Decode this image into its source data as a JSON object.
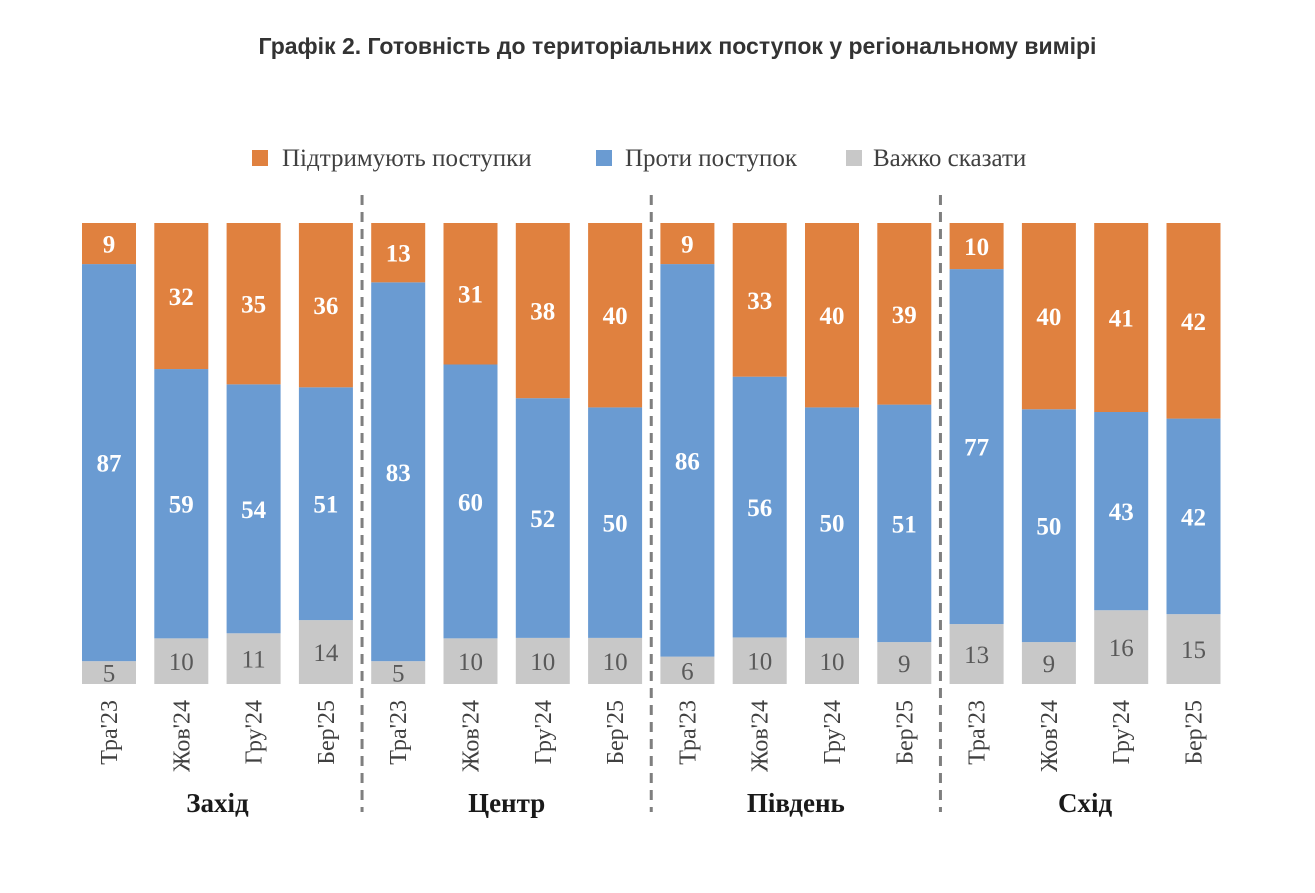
{
  "title": "Графік 2. Готовність до територіальних поступок у регіональному вимірі",
  "chart_data": {
    "type": "bar",
    "stacked": true,
    "percent_stacked": true,
    "title": "Графік 2. Готовність до територіальних поступок у регіональному вимірі",
    "legend": [
      {
        "name": "Підтримують поступки",
        "color": "#E0813F"
      },
      {
        "name": "Проти поступок",
        "color": "#6A9BD2"
      },
      {
        "name": "Важко сказати",
        "color": "#C8C8C8"
      }
    ],
    "legend_position": "top",
    "stack_order_bottom_to_top": [
      "Важко сказати",
      "Проти поступок",
      "Підтримують поступки"
    ],
    "groups": [
      {
        "name": "Захід",
        "categories": [
          "Тра'23",
          "Жов'24",
          "Гру'24",
          "Бер'25"
        ],
        "series": [
          {
            "name": "Підтримують поступки",
            "values": [
              9,
              32,
              35,
              36
            ]
          },
          {
            "name": "Проти поступок",
            "values": [
              87,
              59,
              54,
              51
            ]
          },
          {
            "name": "Важко сказати",
            "values": [
              5,
              10,
              11,
              14
            ]
          }
        ]
      },
      {
        "name": "Центр",
        "categories": [
          "Тра'23",
          "Жов'24",
          "Гру'24",
          "Бер'25"
        ],
        "series": [
          {
            "name": "Підтримують поступки",
            "values": [
              13,
              31,
              38,
              40
            ]
          },
          {
            "name": "Проти поступок",
            "values": [
              83,
              60,
              52,
              50
            ]
          },
          {
            "name": "Важко сказати",
            "values": [
              5,
              10,
              10,
              10
            ]
          }
        ]
      },
      {
        "name": "Південь",
        "categories": [
          "Тра'23",
          "Жов'24",
          "Гру'24",
          "Бер'25"
        ],
        "series": [
          {
            "name": "Підтримують поступки",
            "values": [
              9,
              33,
              40,
              39
            ]
          },
          {
            "name": "Проти поступок",
            "values": [
              86,
              56,
              50,
              51
            ]
          },
          {
            "name": "Важко сказати",
            "values": [
              6,
              10,
              10,
              9
            ]
          }
        ]
      },
      {
        "name": "Схід",
        "categories": [
          "Тра'23",
          "Жов'24",
          "Гру'24",
          "Бер'25"
        ],
        "series": [
          {
            "name": "Підтримують поступки",
            "values": [
              10,
              40,
              41,
              42
            ]
          },
          {
            "name": "Проти поступок",
            "values": [
              77,
              50,
              43,
              42
            ]
          },
          {
            "name": "Важко сказати",
            "values": [
              13,
              9,
              16,
              15
            ]
          }
        ]
      }
    ],
    "xlabel": "",
    "ylabel": "",
    "grid": false,
    "group_separators": "dashed"
  }
}
